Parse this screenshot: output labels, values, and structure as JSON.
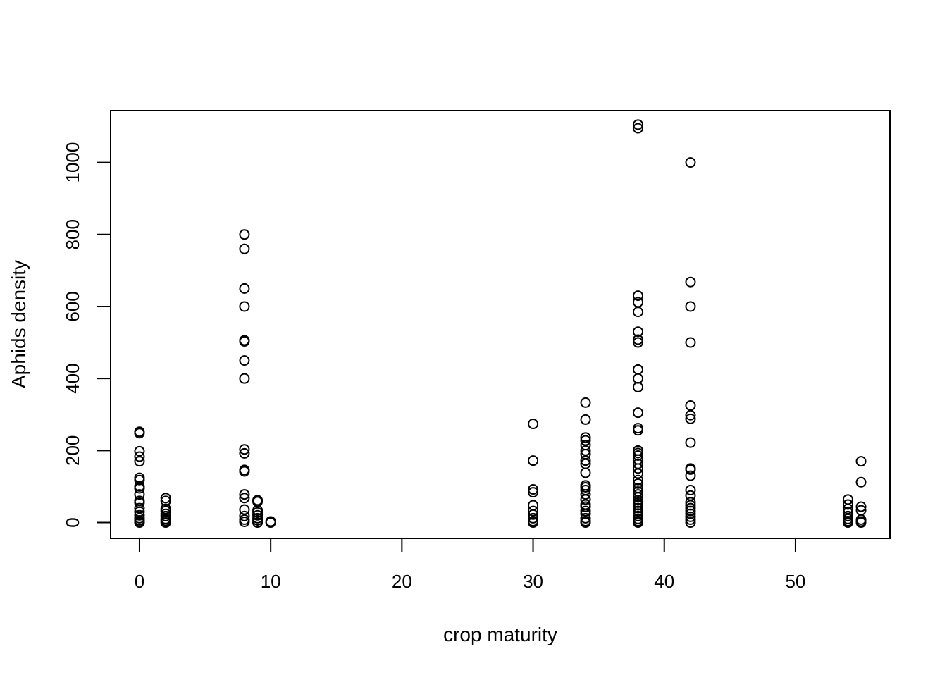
{
  "chart_data": {
    "type": "scatter",
    "title": "",
    "xlabel": "crop maturity",
    "ylabel": "Aphids density",
    "xlim": [
      -2.2,
      57.2
    ],
    "ylim": [
      -44,
      1144
    ],
    "xticks": [
      0,
      10,
      20,
      30,
      40,
      50
    ],
    "yticks": [
      0,
      200,
      400,
      600,
      800,
      1000
    ],
    "xtick_labels": [
      "0",
      "10",
      "20",
      "30",
      "40",
      "50"
    ],
    "ytick_labels": [
      "0",
      "200",
      "400",
      "600",
      "800",
      "1000"
    ],
    "grid": false,
    "legend": "none",
    "marker": "open-circle",
    "colors": {
      "marker": "#000000",
      "axis": "#000000",
      "background": "#ffffff"
    },
    "series": [
      {
        "points": [
          [
            0,
            252
          ],
          [
            0,
            248
          ],
          [
            0,
            198
          ],
          [
            0,
            183
          ],
          [
            0,
            170
          ],
          [
            0,
            124
          ],
          [
            0,
            118
          ],
          [
            0,
            100
          ],
          [
            0,
            95
          ],
          [
            0,
            78
          ],
          [
            0,
            60
          ],
          [
            0,
            55
          ],
          [
            0,
            40
          ],
          [
            0,
            30
          ],
          [
            0,
            20
          ],
          [
            0,
            12
          ],
          [
            0,
            6
          ],
          [
            0,
            2
          ],
          [
            0,
            0
          ],
          [
            2,
            68
          ],
          [
            2,
            60
          ],
          [
            2,
            38
          ],
          [
            2,
            32
          ],
          [
            2,
            24
          ],
          [
            2,
            18
          ],
          [
            2,
            10
          ],
          [
            2,
            5
          ],
          [
            2,
            0
          ],
          [
            8,
            800
          ],
          [
            8,
            760
          ],
          [
            8,
            650
          ],
          [
            8,
            600
          ],
          [
            8,
            506
          ],
          [
            8,
            503
          ],
          [
            8,
            450
          ],
          [
            8,
            400
          ],
          [
            8,
            203
          ],
          [
            8,
            192
          ],
          [
            8,
            146
          ],
          [
            8,
            142
          ],
          [
            8,
            78
          ],
          [
            8,
            68
          ],
          [
            8,
            36
          ],
          [
            8,
            18
          ],
          [
            8,
            8
          ],
          [
            8,
            2
          ],
          [
            9,
            62
          ],
          [
            9,
            58
          ],
          [
            9,
            34
          ],
          [
            9,
            28
          ],
          [
            9,
            20
          ],
          [
            9,
            12
          ],
          [
            9,
            6
          ],
          [
            9,
            0
          ],
          [
            10,
            3
          ],
          [
            10,
            0
          ],
          [
            30,
            274
          ],
          [
            30,
            172
          ],
          [
            30,
            92
          ],
          [
            30,
            84
          ],
          [
            30,
            48
          ],
          [
            30,
            32
          ],
          [
            30,
            22
          ],
          [
            30,
            12
          ],
          [
            30,
            4
          ],
          [
            30,
            0
          ],
          [
            34,
            333
          ],
          [
            34,
            286
          ],
          [
            34,
            236
          ],
          [
            34,
            228
          ],
          [
            34,
            215
          ],
          [
            34,
            200
          ],
          [
            34,
            190
          ],
          [
            34,
            172
          ],
          [
            34,
            163
          ],
          [
            34,
            138
          ],
          [
            34,
            103
          ],
          [
            34,
            98
          ],
          [
            34,
            90
          ],
          [
            34,
            78
          ],
          [
            34,
            64
          ],
          [
            34,
            50
          ],
          [
            34,
            44
          ],
          [
            34,
            32
          ],
          [
            34,
            24
          ],
          [
            34,
            12
          ],
          [
            34,
            4
          ],
          [
            34,
            0
          ],
          [
            38,
            1105
          ],
          [
            38,
            1095
          ],
          [
            38,
            630
          ],
          [
            38,
            612
          ],
          [
            38,
            585
          ],
          [
            38,
            530
          ],
          [
            38,
            508
          ],
          [
            38,
            500
          ],
          [
            38,
            425
          ],
          [
            38,
            400
          ],
          [
            38,
            376
          ],
          [
            38,
            305
          ],
          [
            38,
            262
          ],
          [
            38,
            256
          ],
          [
            38,
            200
          ],
          [
            38,
            193
          ],
          [
            38,
            186
          ],
          [
            38,
            175
          ],
          [
            38,
            163
          ],
          [
            38,
            150
          ],
          [
            38,
            136
          ],
          [
            38,
            118
          ],
          [
            38,
            108
          ],
          [
            38,
            96
          ],
          [
            38,
            86
          ],
          [
            38,
            78
          ],
          [
            38,
            70
          ],
          [
            38,
            62
          ],
          [
            38,
            55
          ],
          [
            38,
            48
          ],
          [
            38,
            40
          ],
          [
            38,
            32
          ],
          [
            38,
            25
          ],
          [
            38,
            18
          ],
          [
            38,
            10
          ],
          [
            38,
            4
          ],
          [
            38,
            0
          ],
          [
            42,
            1000
          ],
          [
            42,
            668
          ],
          [
            42,
            600
          ],
          [
            42,
            500
          ],
          [
            42,
            325
          ],
          [
            42,
            298
          ],
          [
            42,
            288
          ],
          [
            42,
            222
          ],
          [
            42,
            150
          ],
          [
            42,
            147
          ],
          [
            42,
            130
          ],
          [
            42,
            90
          ],
          [
            42,
            75
          ],
          [
            42,
            56
          ],
          [
            42,
            48
          ],
          [
            42,
            40
          ],
          [
            42,
            32
          ],
          [
            42,
            24
          ],
          [
            42,
            16
          ],
          [
            42,
            8
          ],
          [
            42,
            0
          ],
          [
            54,
            64
          ],
          [
            54,
            50
          ],
          [
            54,
            38
          ],
          [
            54,
            28
          ],
          [
            54,
            18
          ],
          [
            54,
            10
          ],
          [
            54,
            4
          ],
          [
            54,
            0
          ],
          [
            55,
            170
          ],
          [
            55,
            112
          ],
          [
            55,
            44
          ],
          [
            55,
            34
          ],
          [
            55,
            8
          ],
          [
            55,
            3
          ],
          [
            55,
            0
          ]
        ]
      }
    ]
  }
}
